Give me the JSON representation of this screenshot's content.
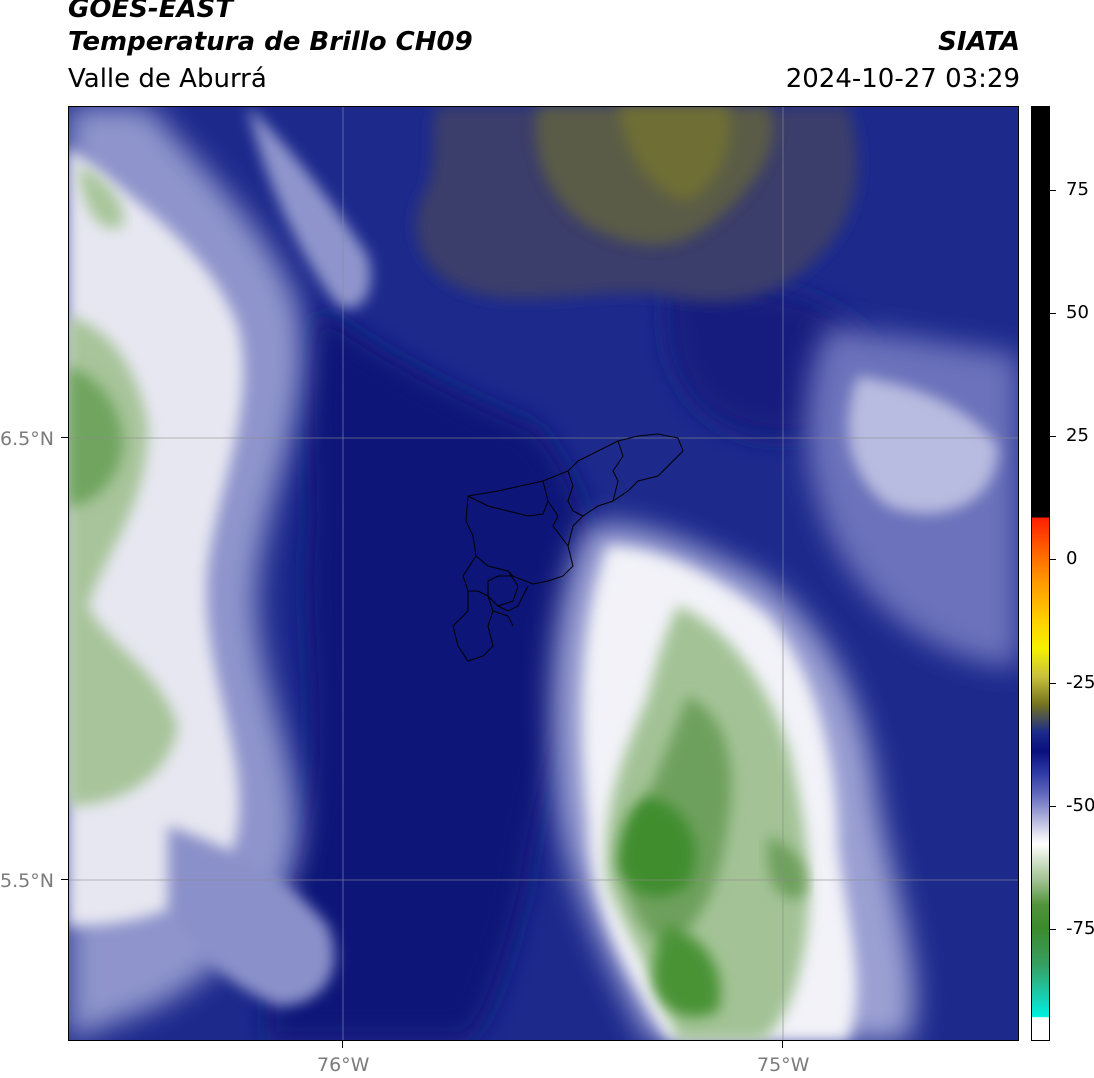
{
  "header": {
    "title_line1": "GOES-EAST",
    "title_line2": "Temperatura de Brillo CH09",
    "subtitle": "Valle de Aburrá",
    "organization": "SIATA",
    "datetime": "2024-10-27 03:29"
  },
  "map": {
    "latitude_labels": [
      "6.5°N",
      "5.5°N"
    ],
    "longitude_labels": [
      "76°W",
      "75°W"
    ],
    "overlay": "Valle de Aburrá municipal boundaries"
  },
  "colorbar": {
    "tick_labels": [
      "75",
      "50",
      "25",
      "0",
      "-25",
      "-50",
      "-75"
    ],
    "colors": {
      "warm_top": "#000000",
      "red": "#ff1e00",
      "yellow": "#f6f200",
      "navy": "#0a0f7e",
      "white": "#ffffff",
      "green": "#3c8a2c",
      "cyan": "#00f0e0"
    }
  }
}
